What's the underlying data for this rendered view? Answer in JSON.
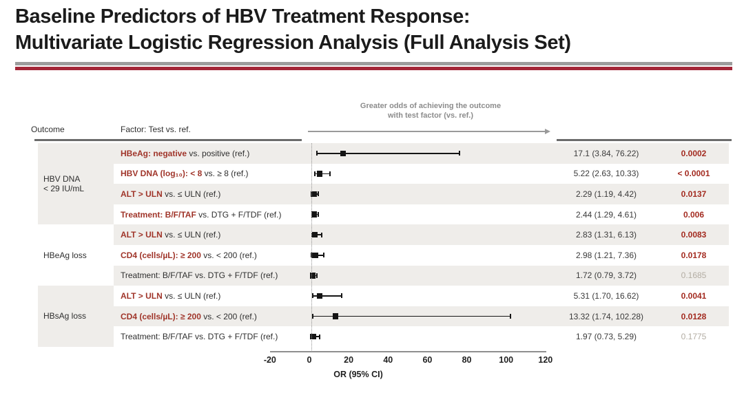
{
  "title": {
    "line1": "Baseline Predictors of HBV Treatment Response:",
    "line2": "Multivariate Logistic Regression Analysis (Full Analysis Set)"
  },
  "table": {
    "outcome_header": "Outcome",
    "factor_header": "Factor: Test vs. ref."
  },
  "colors": {
    "rule_gray": "#9c9c9c",
    "rule_red": "#a32638",
    "factor_red": "#a0352a",
    "sig_red": "#a32b20",
    "ns_gray": "#b3ada3",
    "stripe_gray": "#efedea",
    "annotation_gray": "#8c8c8c"
  },
  "chart_data": {
    "type": "forest",
    "xlabel": "OR (95% CI)",
    "xlim": [
      -20,
      120
    ],
    "x_ticks": [
      -20,
      0,
      20,
      40,
      60,
      80,
      100,
      120
    ],
    "reference_line": 1,
    "grid": false,
    "annotation_lines": [
      "Greater odds of achieving the outcome",
      "with test factor (vs. ref.)"
    ],
    "groups": [
      {
        "label_lines": [
          "HBV DNA",
          "< 29 IU/mL"
        ],
        "row_start": 0,
        "row_count": 4,
        "shaded": true
      },
      {
        "label_lines": [
          "HBeAg loss"
        ],
        "row_start": 4,
        "row_count": 3,
        "shaded": false
      },
      {
        "label_lines": [
          "HBsAg loss"
        ],
        "row_start": 7,
        "row_count": 3,
        "shaded": true
      }
    ],
    "rows": [
      {
        "outcome": "HBV DNA < 29 IU/mL",
        "factor_strong": "HBeAg: negative",
        "factor_rest": " vs. positive (ref.)",
        "or": 17.1,
        "ci_low": 3.84,
        "ci_high": 76.22,
        "or_ci_label": "17.1 (3.84, 76.22)",
        "p_value": "0.0002",
        "significant": true
      },
      {
        "outcome": "HBV DNA < 29 IU/mL",
        "factor_strong": "HBV DNA (log₁₀): < 8",
        "factor_rest": " vs. ≥ 8 (ref.)",
        "or": 5.22,
        "ci_low": 2.63,
        "ci_high": 10.33,
        "or_ci_label": "5.22 (2.63, 10.33)",
        "p_value": "< 0.0001",
        "significant": true
      },
      {
        "outcome": "HBV DNA < 29 IU/mL",
        "factor_strong": "ALT > ULN",
        "factor_rest": " vs. ≤ ULN (ref.)",
        "or": 2.29,
        "ci_low": 1.19,
        "ci_high": 4.42,
        "or_ci_label": "2.29 (1.19, 4.42)",
        "p_value": "0.0137",
        "significant": true
      },
      {
        "outcome": "HBV DNA < 29 IU/mL",
        "factor_strong": "Treatment: B/F/TAF",
        "factor_rest": " vs. DTG + F/TDF (ref.)",
        "or": 2.44,
        "ci_low": 1.29,
        "ci_high": 4.61,
        "or_ci_label": "2.44 (1.29, 4.61)",
        "p_value": "0.006",
        "significant": true
      },
      {
        "outcome": "HBeAg loss",
        "factor_strong": "ALT > ULN",
        "factor_rest": " vs. ≤ ULN (ref.)",
        "or": 2.83,
        "ci_low": 1.31,
        "ci_high": 6.13,
        "or_ci_label": "2.83 (1.31, 6.13)",
        "p_value": "0.0083",
        "significant": true
      },
      {
        "outcome": "HBeAg loss",
        "factor_strong": "CD4 (cells/µL): ≥ 200",
        "factor_rest": " vs. < 200 (ref.)",
        "or": 2.98,
        "ci_low": 1.21,
        "ci_high": 7.36,
        "or_ci_label": "2.98 (1.21, 7.36)",
        "p_value": "0.0178",
        "significant": true
      },
      {
        "outcome": "HBeAg loss",
        "factor_strong": "",
        "factor_rest": "Treatment: B/F/TAF vs. DTG + F/TDF (ref.)",
        "or": 1.72,
        "ci_low": 0.79,
        "ci_high": 3.72,
        "or_ci_label": "1.72 (0.79, 3.72)",
        "p_value": "0.1685",
        "significant": false
      },
      {
        "outcome": "HBsAg loss",
        "factor_strong": "ALT > ULN",
        "factor_rest": " vs. ≤ ULN (ref.)",
        "or": 5.31,
        "ci_low": 1.7,
        "ci_high": 16.62,
        "or_ci_label": "5.31 (1.70, 16.62)",
        "p_value": "0.0041",
        "significant": true
      },
      {
        "outcome": "HBsAg loss",
        "factor_strong": "CD4 (cells/µL): ≥ 200",
        "factor_rest": " vs. < 200 (ref.)",
        "or": 13.32,
        "ci_low": 1.74,
        "ci_high": 102.28,
        "or_ci_label": "13.32 (1.74, 102.28)",
        "p_value": "0.0128",
        "significant": true
      },
      {
        "outcome": "HBsAg loss",
        "factor_strong": "",
        "factor_rest": "Treatment: B/F/TAF vs. DTG + F/TDF (ref.)",
        "or": 1.97,
        "ci_low": 0.73,
        "ci_high": 5.29,
        "or_ci_label": "1.97 (0.73, 5.29)",
        "p_value": "0.1775",
        "significant": false
      }
    ]
  }
}
